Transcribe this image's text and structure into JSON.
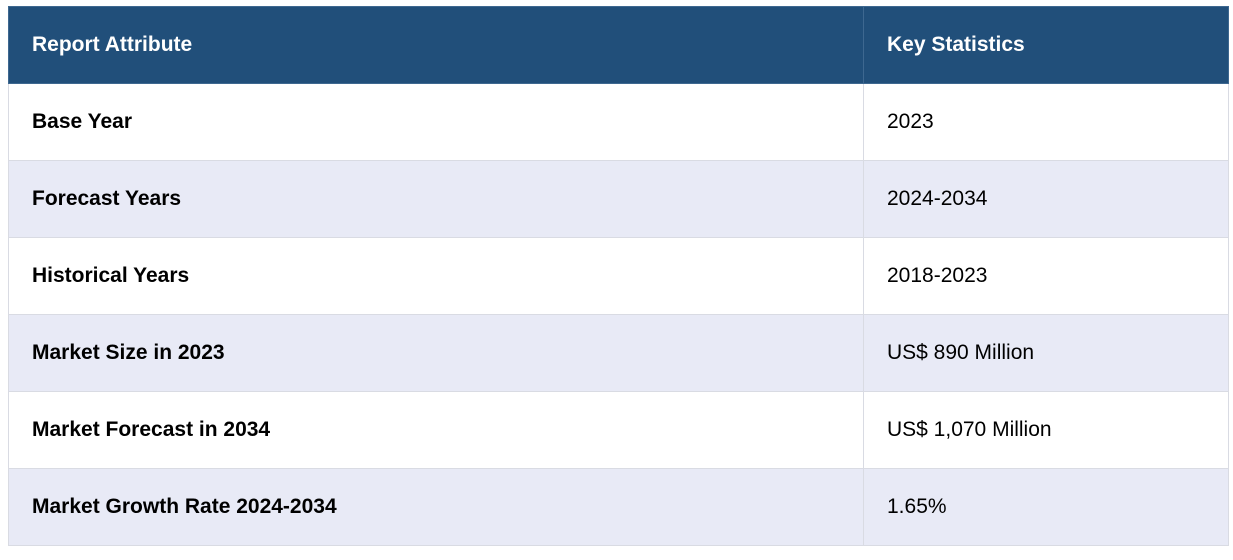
{
  "table": {
    "header": [
      "Report Attribute",
      "Key Statistics"
    ],
    "rows": [
      [
        "Base Year",
        "2023"
      ],
      [
        "Forecast Years",
        "2024-2034"
      ],
      [
        "Historical Years",
        "2018-2023"
      ],
      [
        "Market Size in 2023",
        "US$ 890 Million"
      ],
      [
        "Market Forecast in 2034",
        "US$ 1,070 Million"
      ],
      [
        "Market Growth Rate 2024-2034",
        "1.65%"
      ]
    ]
  }
}
